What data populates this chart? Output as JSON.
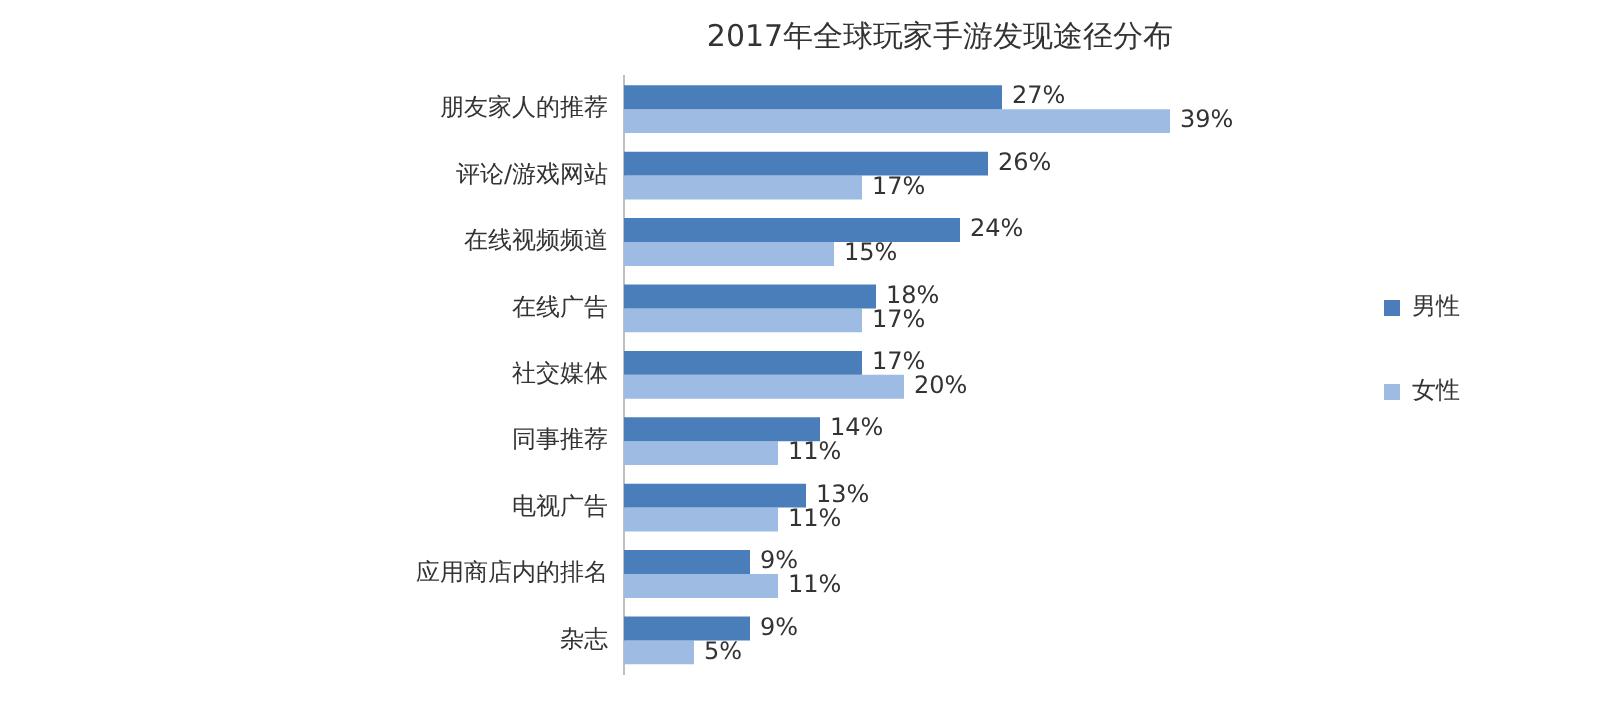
{
  "chart_data": {
    "type": "bar",
    "orientation": "horizontal",
    "title": "2017年全球玩家手游发现途径分布",
    "categories": [
      "朋友家人的推荐",
      "评论/游戏网站",
      "在线视频频道",
      "在线广告",
      "社交媒体",
      "同事推荐",
      "电视广告",
      "应用商店内的排名",
      "杂志"
    ],
    "series": [
      {
        "name": "男性",
        "color": "#4a7ebb",
        "values": [
          27,
          26,
          24,
          18,
          17,
          14,
          13,
          9,
          9
        ],
        "value_labels": [
          "27%",
          "26%",
          "24%",
          "18%",
          "17%",
          "14%",
          "13%",
          "9%",
          "9%"
        ]
      },
      {
        "name": "女性",
        "color": "#9dbbe3",
        "values": [
          39,
          17,
          15,
          17,
          20,
          11,
          11,
          11,
          5
        ],
        "value_labels": [
          "39%",
          "17%",
          "15%",
          "17%",
          "20%",
          "11%",
          "11%",
          "11%",
          "5%"
        ]
      }
    ],
    "tick_labels": "y",
    "grid": false,
    "legend": "right"
  }
}
